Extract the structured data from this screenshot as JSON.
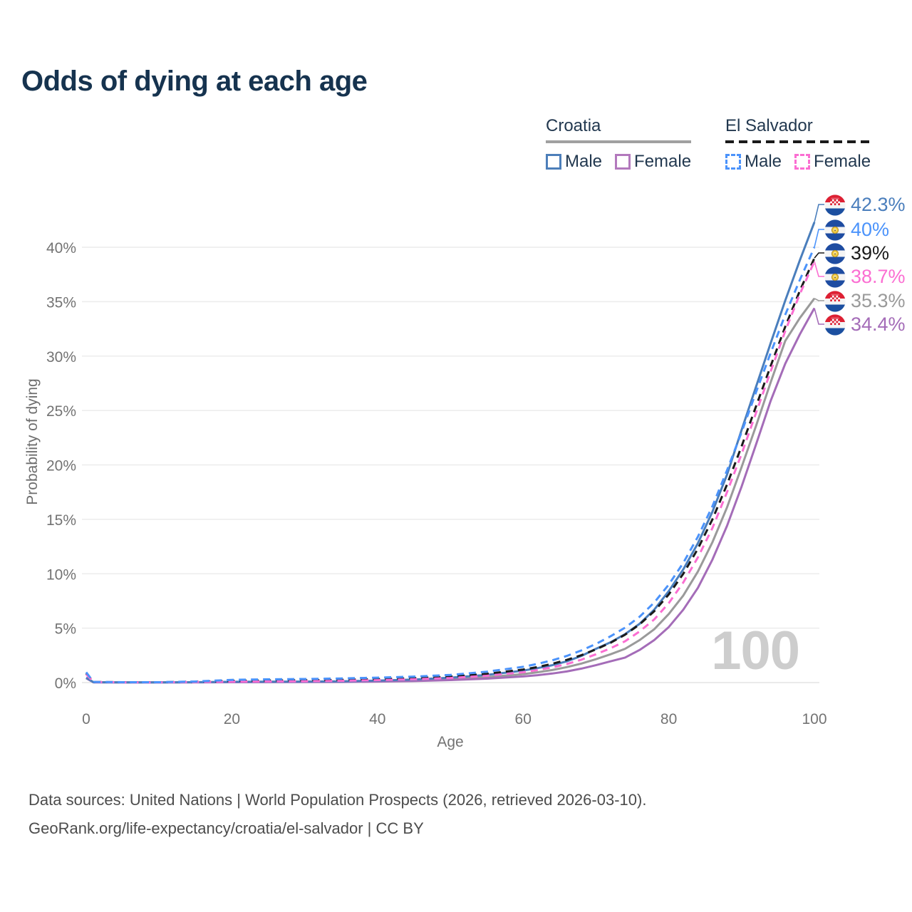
{
  "title": "Odds of dying at each age",
  "watermark": "100",
  "footer": {
    "line1": "Data sources: United Nations | World Population Prospects (2026, retrieved 2026-03-10).",
    "line2": "GeoRank.org/life-expectancy/croatia/el-salvador | CC BY"
  },
  "legend": {
    "groups": [
      {
        "country": "Croatia",
        "line_style": "solid",
        "sample_color": "#a0a0a0",
        "items": [
          {
            "label": "Male",
            "color": "#4d7fba",
            "dashed": false
          },
          {
            "label": "Female",
            "color": "#b379bd",
            "dashed": false
          }
        ]
      },
      {
        "country": "El Salvador",
        "line_style": "dashed",
        "sample_color": "#1a1a1a",
        "items": [
          {
            "label": "Male",
            "color": "#4b93fb",
            "dashed": true
          },
          {
            "label": "Female",
            "color": "#fb6ed2",
            "dashed": true
          }
        ]
      }
    ]
  },
  "chart_data": {
    "type": "line",
    "title": "Odds of dying at each age",
    "xlabel": "Age",
    "ylabel": "Probability of dying",
    "xlim": [
      0,
      100
    ],
    "ylim": [
      0,
      44
    ],
    "grid": true,
    "legend_position": "top-right",
    "x_tick_values": [
      0,
      20,
      40,
      60,
      80,
      100
    ],
    "x_tick_labels": [
      "0",
      "20",
      "40",
      "60",
      "80",
      "100"
    ],
    "y_tick_values": [
      0,
      5,
      10,
      15,
      20,
      25,
      30,
      35,
      40
    ],
    "y_tick_labels": [
      "0%",
      "5%",
      "10%",
      "15%",
      "20%",
      "25%",
      "30%",
      "35%",
      "40%"
    ],
    "x": [
      0,
      1,
      5,
      10,
      15,
      20,
      25,
      30,
      35,
      40,
      45,
      50,
      55,
      60,
      62,
      64,
      66,
      68,
      70,
      72,
      74,
      76,
      78,
      80,
      82,
      84,
      86,
      88,
      90,
      92,
      94,
      96,
      98,
      100
    ],
    "series": [
      {
        "name": "Croatia Both sexes",
        "country": "Croatia",
        "sex": "Both",
        "color": "#9a9a9a",
        "style": "solid",
        "flag": "croatia",
        "end_label": "35.3%",
        "end_value": 35.3,
        "values": [
          0.43,
          0.03,
          0.01,
          0.01,
          0.03,
          0.05,
          0.06,
          0.07,
          0.09,
          0.13,
          0.2,
          0.32,
          0.5,
          0.78,
          0.95,
          1.15,
          1.42,
          1.75,
          2.15,
          2.6,
          3.1,
          3.9,
          4.9,
          6.3,
          8.0,
          10.2,
          12.9,
          16.1,
          19.8,
          23.6,
          27.6,
          31.4,
          33.5,
          35.3
        ]
      },
      {
        "name": "Croatia Female",
        "country": "Croatia",
        "sex": "Female",
        "color": "#a46cb8",
        "style": "solid",
        "flag": "croatia",
        "end_label": "34.4%",
        "end_value": 34.4,
        "values": [
          0.4,
          0.02,
          0.01,
          0.01,
          0.02,
          0.03,
          0.04,
          0.05,
          0.06,
          0.09,
          0.14,
          0.23,
          0.36,
          0.56,
          0.68,
          0.83,
          1.02,
          1.28,
          1.6,
          1.95,
          2.3,
          3.0,
          3.9,
          5.1,
          6.7,
          8.7,
          11.3,
          14.4,
          18.0,
          21.9,
          25.9,
          29.3,
          32.0,
          34.4
        ]
      },
      {
        "name": "Croatia Male",
        "country": "Croatia",
        "sex": "Male",
        "color": "#4a7ebc",
        "style": "solid",
        "flag": "croatia",
        "end_label": "42.3%",
        "end_value": 42.3,
        "values": [
          0.45,
          0.03,
          0.01,
          0.01,
          0.03,
          0.07,
          0.08,
          0.09,
          0.12,
          0.18,
          0.28,
          0.45,
          0.7,
          1.1,
          1.33,
          1.6,
          1.95,
          2.45,
          3.1,
          3.7,
          4.45,
          5.4,
          6.7,
          8.4,
          10.4,
          12.8,
          15.7,
          19.1,
          23.2,
          27.2,
          31.2,
          35.1,
          38.8,
          42.3
        ]
      },
      {
        "name": "El Salvador Both sexes",
        "country": "El Salvador",
        "sex": "Both",
        "color": "#1a1a1a",
        "style": "dashed",
        "flag": "el-salvador",
        "end_label": "39%",
        "end_value": 39,
        "values": [
          0.85,
          0.05,
          0.03,
          0.03,
          0.07,
          0.16,
          0.19,
          0.21,
          0.25,
          0.32,
          0.4,
          0.55,
          0.8,
          1.2,
          1.43,
          1.72,
          2.08,
          2.52,
          3.05,
          3.65,
          4.4,
          5.35,
          6.55,
          8.1,
          10.0,
          12.3,
          15.0,
          18.2,
          21.7,
          25.4,
          29.1,
          32.7,
          36.0,
          39.0
        ]
      },
      {
        "name": "El Salvador Female",
        "country": "El Salvador",
        "sex": "Female",
        "color": "#fb6ed2",
        "style": "dashed",
        "flag": "el-salvador",
        "end_label": "38.7%",
        "end_value": 38.7,
        "values": [
          0.75,
          0.05,
          0.02,
          0.02,
          0.05,
          0.08,
          0.1,
          0.12,
          0.16,
          0.22,
          0.3,
          0.42,
          0.62,
          0.95,
          1.15,
          1.4,
          1.7,
          2.1,
          2.6,
          3.15,
          3.8,
          4.7,
          5.8,
          7.3,
          9.2,
          11.5,
          14.2,
          17.5,
          21.0,
          24.8,
          28.6,
          32.3,
          35.7,
          38.7
        ]
      },
      {
        "name": "El Salvador Male",
        "country": "El Salvador",
        "sex": "Male",
        "color": "#4b93fb",
        "style": "dashed",
        "flag": "el-salvador",
        "end_label": "40%",
        "end_value": 40,
        "values": [
          0.95,
          0.06,
          0.03,
          0.03,
          0.1,
          0.25,
          0.3,
          0.33,
          0.38,
          0.45,
          0.55,
          0.7,
          1.0,
          1.45,
          1.72,
          2.05,
          2.45,
          2.95,
          3.55,
          4.25,
          5.05,
          6.05,
          7.35,
          9.0,
          11.0,
          13.4,
          16.2,
          19.5,
          23.0,
          26.7,
          30.3,
          33.8,
          37.0,
          40.0
        ]
      }
    ]
  }
}
